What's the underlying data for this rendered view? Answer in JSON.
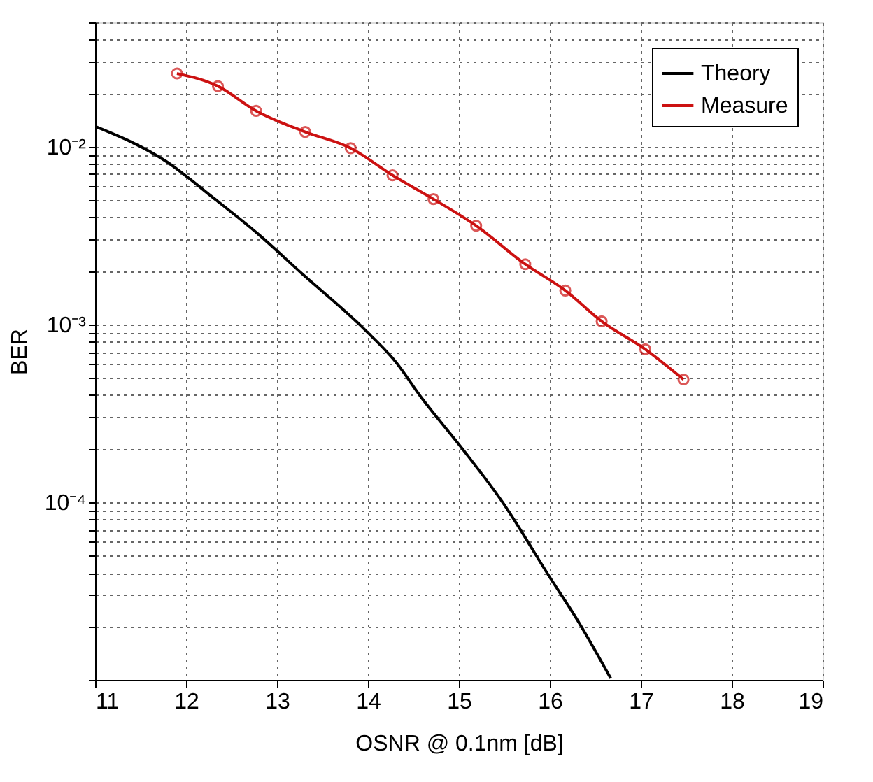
{
  "chart_data": {
    "type": "line",
    "xlabel": "OSNR @ 0.1nm [dB]",
    "ylabel": "BER",
    "log": "y",
    "grid": true,
    "legend": "top right",
    "xlim": [
      11,
      19
    ],
    "xticks": [
      11,
      12,
      13,
      14,
      15,
      16,
      17,
      18,
      19
    ],
    "ylim": [
      1e-05,
      0.05
    ],
    "yticks": [
      {
        "value": 1e-05,
        "label": null
      },
      {
        "value": 2e-05,
        "label": null
      },
      {
        "value": 3e-05,
        "label": null
      },
      {
        "value": 4e-05,
        "label": null
      },
      {
        "value": 5e-05,
        "label": null
      },
      {
        "value": 6e-05,
        "label": null
      },
      {
        "value": 7e-05,
        "label": null
      },
      {
        "value": 8e-05,
        "label": null
      },
      {
        "value": 9e-05,
        "label": null
      },
      {
        "value": 0.0001,
        "label": "10⁻⁴"
      },
      {
        "value": 0.0002,
        "label": null
      },
      {
        "value": 0.0003,
        "label": null
      },
      {
        "value": 0.0004,
        "label": null
      },
      {
        "value": 0.0005,
        "label": null
      },
      {
        "value": 0.0006,
        "label": null
      },
      {
        "value": 0.0007,
        "label": null
      },
      {
        "value": 0.0008,
        "label": null
      },
      {
        "value": 0.0009,
        "label": null
      },
      {
        "value": 0.001,
        "label": "10⁻³"
      },
      {
        "value": 0.002,
        "label": null
      },
      {
        "value": 0.003,
        "label": null
      },
      {
        "value": 0.004,
        "label": null
      },
      {
        "value": 0.005,
        "label": null
      },
      {
        "value": 0.006,
        "label": null
      },
      {
        "value": 0.007,
        "label": null
      },
      {
        "value": 0.008,
        "label": null
      },
      {
        "value": 0.009,
        "label": null
      },
      {
        "value": 0.01,
        "label": "10⁻²"
      },
      {
        "value": 0.02,
        "label": null
      },
      {
        "value": 0.03,
        "label": null
      },
      {
        "value": 0.04,
        "label": null
      },
      {
        "value": 0.05,
        "label": null
      }
    ],
    "series": [
      {
        "name": "Theory",
        "color": "#000000",
        "marker": "none",
        "x": [
          11.0,
          11.79,
          12.3,
          12.8,
          13.26,
          13.96,
          14.3,
          14.6,
          15.03,
          15.48,
          15.98,
          16.33,
          16.67
        ],
        "values": [
          0.013,
          0.0082,
          0.00515,
          0.0032,
          0.00196,
          0.00094,
          0.00062,
          0.00038,
          0.000202,
          0.0001,
          3.92e-05,
          2.06e-05,
          1.02e-05
        ]
      },
      {
        "name": "Measure",
        "color": "#cc1111",
        "marker": "circle",
        "x": [
          11.9,
          12.35,
          12.77,
          13.31,
          13.81,
          14.27,
          14.72,
          15.19,
          15.73,
          16.17,
          16.57,
          17.05,
          17.47
        ],
        "values": [
          0.0258,
          0.0219,
          0.0159,
          0.0121,
          0.0098,
          0.0069,
          0.00507,
          0.00359,
          0.00218,
          0.00155,
          0.00104,
          0.000724,
          0.00049
        ]
      }
    ]
  }
}
